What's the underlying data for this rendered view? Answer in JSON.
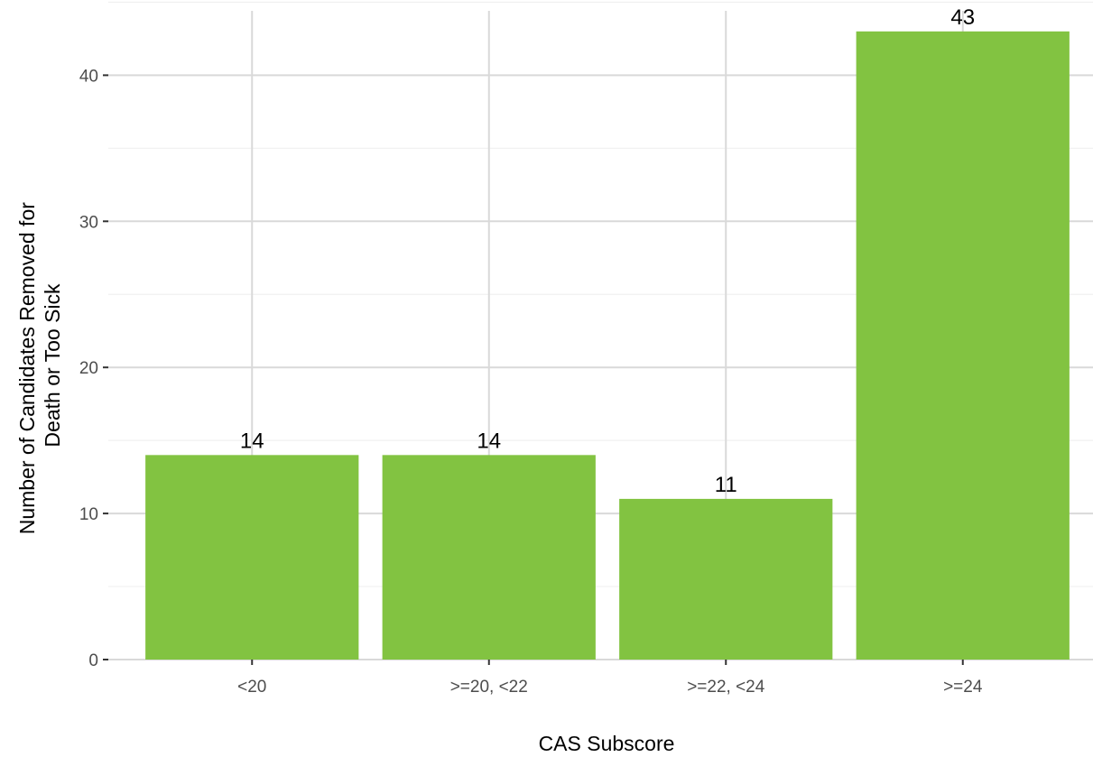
{
  "chart_data": {
    "type": "bar",
    "categories": [
      "<20",
      ">=20, <22",
      ">=22, <24",
      ">=24"
    ],
    "values": [
      14,
      14,
      11,
      43
    ],
    "data_labels": [
      "14",
      "14",
      "11",
      "43"
    ],
    "xlabel": "CAS Subscore",
    "ylabel_lines": [
      "Number of Candidates Removed for",
      "Death or Too Sick"
    ],
    "ylim": [
      0,
      45.15
    ],
    "yticks": [
      0,
      10,
      20,
      30,
      40
    ],
    "ytick_labels": [
      "0",
      "10",
      "20",
      "30",
      "40"
    ],
    "grid": true,
    "bar_color": "#82c341",
    "grid_color": "#d9d9d9"
  }
}
